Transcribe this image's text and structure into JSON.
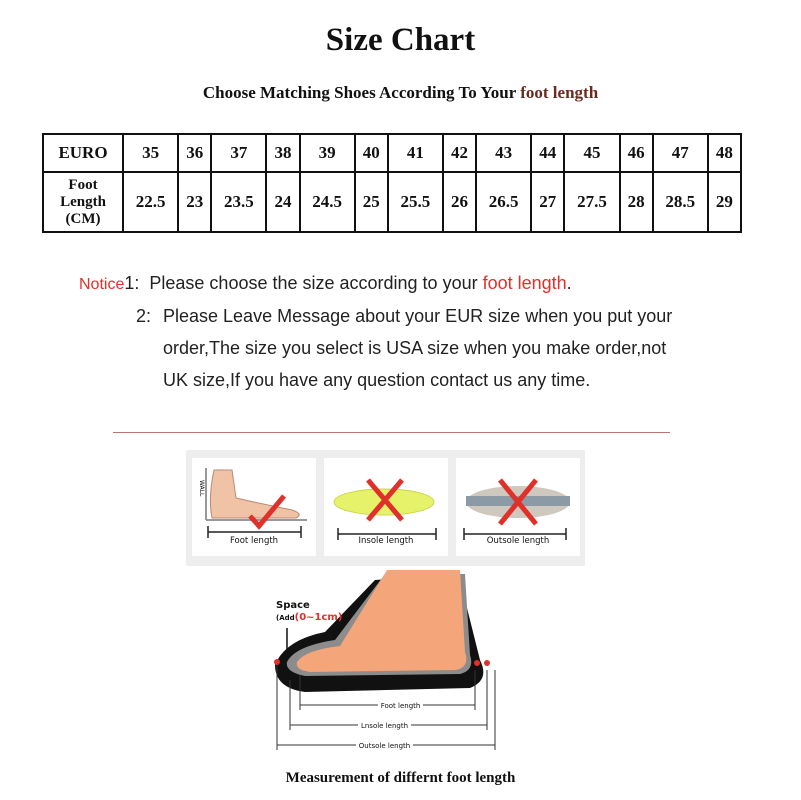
{
  "title": "Size Chart",
  "subtitle": {
    "text": "Choose Matching Shoes According To Your ",
    "highlight": "foot length"
  },
  "table": {
    "row_headers": [
      "EURO",
      "Foot Length (CM)"
    ],
    "row_header_lines": [
      "Foot",
      "Length",
      "(CM)"
    ],
    "euro": [
      "35",
      "36",
      "37",
      "38",
      "39",
      "40",
      "41",
      "42",
      "43",
      "44",
      "45",
      "46",
      "47",
      "48"
    ],
    "foot_length_cm": [
      "22.5",
      "23",
      "23.5",
      "24",
      "24.5",
      "25",
      "25.5",
      "26",
      "26.5",
      "27",
      "27.5",
      "28",
      "28.5",
      "29"
    ]
  },
  "notice": {
    "label": "Notice",
    "item1_num": "1:",
    "item1_text": "Please choose the size according to your ",
    "item1_highlight": "foot length",
    "item1_end": ".",
    "item2_num": "2:",
    "item2_lines": [
      "Please Leave Message about your EUR size when you put your",
      "order,The size you select is USA size when you make order,not",
      "UK size,If you have any question  contact us any time."
    ]
  },
  "methods": [
    {
      "label": "Foot length",
      "mark": "check",
      "wall": "WALL"
    },
    {
      "label": "Insole length",
      "mark": "cross"
    },
    {
      "label": "Outsole length",
      "mark": "cross"
    }
  ],
  "diagram": {
    "space_label": "Space",
    "add_prefix": "(Add",
    "add_value": "(0~1cm)",
    "measures": [
      "Foot length",
      "Lnsole length",
      "Outsole length"
    ]
  },
  "caption": "Measurement of differnt foot length",
  "colors": {
    "accent_red": "#e0302a",
    "highlight_brown": "#6b2a1e",
    "foot": "#f4a57a"
  }
}
